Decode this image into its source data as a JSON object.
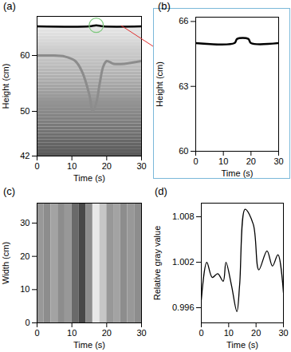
{
  "chart_data": [
    {
      "type": "line",
      "title": "(a)",
      "x_label": "Time (s)",
      "y_label": "Height (cm)",
      "xlim": [
        0,
        30
      ],
      "xticks": [
        0,
        10,
        20,
        30
      ],
      "ylim": [
        42,
        67
      ],
      "yticks": [
        42,
        50,
        60
      ],
      "series": [
        {
          "color": "#000000",
          "x": [
            0,
            15,
            17,
            19,
            30
          ],
          "values": [
            65.2,
            65.2,
            65.4,
            65.2,
            65.2
          ]
        },
        {
          "color": "#8c8c8c",
          "x": [
            0,
            4,
            8,
            11,
            13,
            15,
            16,
            17,
            18,
            19,
            20,
            22,
            25,
            30
          ],
          "values": [
            60,
            60,
            59.8,
            59,
            57,
            53,
            50,
            51.5,
            55,
            58,
            59,
            58.5,
            58.5,
            59
          ]
        }
      ]
    },
    {
      "type": "line",
      "title": "(b)",
      "x_label": "Time (s)",
      "y_label": "Height (cm)",
      "xlim": [
        0,
        30
      ],
      "xticks": [
        0,
        10,
        20,
        30
      ],
      "ylim": [
        60,
        66.2
      ],
      "yticks": [
        60,
        63,
        66
      ],
      "series": [
        {
          "color": "#000000",
          "x": [
            0,
            14,
            15,
            19,
            20,
            30
          ],
          "values": [
            65,
            65,
            65.2,
            65.2,
            65,
            65
          ]
        }
      ]
    },
    {
      "type": "heatmap",
      "title": "(c)",
      "x_label": "Time (s)",
      "y_label": "Width (cm)",
      "xlim": [
        0,
        30
      ],
      "xticks": [
        0,
        10,
        20,
        30
      ],
      "ylim": [
        0,
        36
      ],
      "yticks": [
        0,
        10,
        20,
        30
      ],
      "bins": [
        0,
        2,
        4,
        6,
        8,
        10,
        12,
        14,
        16,
        18,
        20,
        22,
        24,
        26,
        28,
        30
      ],
      "values": [
        0.55,
        0.5,
        0.6,
        0.5,
        0.55,
        0.35,
        0.2,
        0.5,
        0.9,
        0.75,
        0.55,
        0.6,
        0.5,
        0.55,
        0.5
      ],
      "zlim": [
        0,
        1
      ]
    },
    {
      "type": "line",
      "title": "(d)",
      "x_label": "Time (s)",
      "y_label": "Relative gray value",
      "xlim": [
        0,
        30
      ],
      "xticks": [
        0,
        10,
        20,
        30
      ],
      "ylim": [
        0.994,
        1.0098
      ],
      "yticks": [
        0.996,
        1.002,
        1.008
      ],
      "series": [
        {
          "color": "#000000",
          "x": [
            0,
            2,
            4,
            6,
            8,
            9,
            11,
            13,
            14,
            16,
            19,
            21,
            24,
            26,
            28,
            30
          ],
          "values": [
            0.997,
            1.002,
            1.0,
            1.0005,
            0.9995,
            1.002,
            0.999,
            0.9955,
            0.999,
            1.009,
            1.007,
            1.001,
            1.0035,
            1.0015,
            1.003,
            0.998
          ]
        }
      ]
    }
  ]
}
